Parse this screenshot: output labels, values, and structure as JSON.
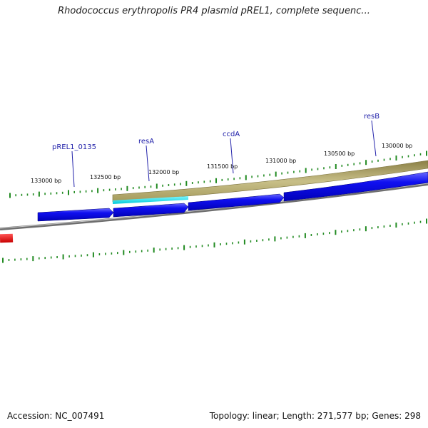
{
  "header": {
    "title": "Rhodococcus erythropolis PR4 plasmid pREL1, complete sequenc..."
  },
  "footer": {
    "accession": "Accession: NC_007491",
    "summary": "Topology: linear; Length: 271,577 bp; Genes: 298"
  },
  "scale": {
    "labels": [
      "133000 bp",
      "132500 bp",
      "132000 bp",
      "131500 bp",
      "131000 bp",
      "130500 bp",
      "130000 bp"
    ]
  },
  "genes": [
    {
      "name": "pREL1_0135"
    },
    {
      "name": "resA"
    },
    {
      "name": "ccdA"
    },
    {
      "name": "resB"
    }
  ],
  "colors": {
    "cds": "#0000e6",
    "cds_light": "#6a6aff",
    "gene_band": "#bcb27a",
    "gene_band_dark": "#8a7f45",
    "highlight": "#00e5ee",
    "backbone": "#6f6f6f",
    "tick": "#228b22",
    "red_feature": "#ee0000",
    "label": "#2222aa"
  }
}
